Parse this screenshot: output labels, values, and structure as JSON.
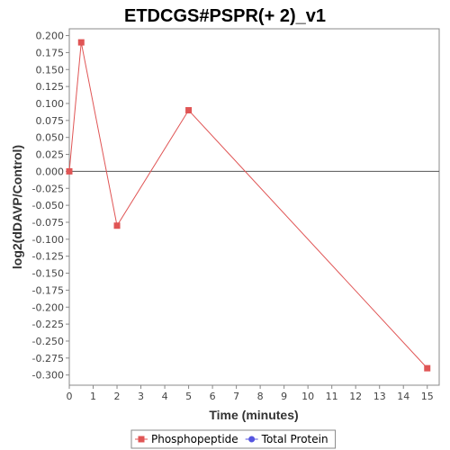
{
  "chart_data": {
    "type": "line",
    "title": "ETDCGS#PSPR(+ 2)_v1",
    "xlabel": "Time (minutes)",
    "ylabel": "log2(dDAVP/Control)",
    "xlim": [
      0,
      15.5
    ],
    "ylim": [
      -0.315,
      0.21
    ],
    "xticks": [
      "0",
      "1",
      "2",
      "3",
      "4",
      "5",
      "6",
      "7",
      "8",
      "9",
      "10",
      "11",
      "12",
      "13",
      "14",
      "15"
    ],
    "yticks": [
      "0.200",
      "0.175",
      "0.150",
      "0.125",
      "0.100",
      "0.075",
      "0.050",
      "0.025",
      "0.000",
      "-0.025",
      "-0.050",
      "-0.075",
      "-0.100",
      "-0.125",
      "-0.150",
      "-0.175",
      "-0.200",
      "-0.225",
      "-0.250",
      "-0.275",
      "-0.300"
    ],
    "grid": false,
    "legend_position": "bottom",
    "series": [
      {
        "name": "Phosphopeptide",
        "color": "#e05555",
        "marker": "square",
        "x": [
          0,
          0.5,
          2,
          5,
          15
        ],
        "y": [
          0.0,
          0.19,
          -0.08,
          0.09,
          -0.29
        ]
      },
      {
        "name": "Total Protein",
        "color": "#5555e0",
        "marker": "circle",
        "x": [],
        "y": []
      }
    ]
  }
}
